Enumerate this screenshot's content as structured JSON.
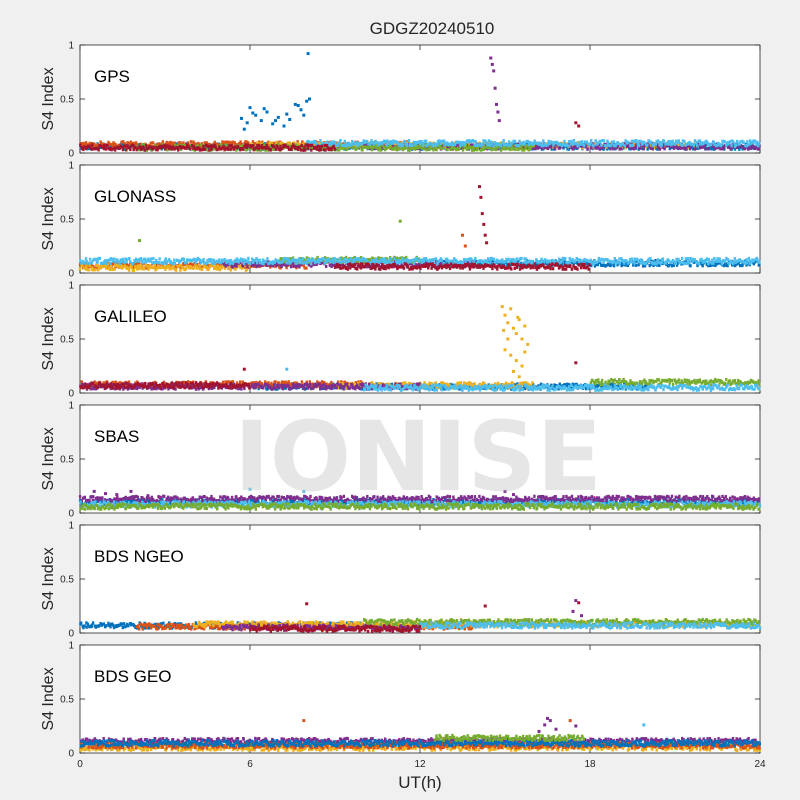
{
  "chart_data": {
    "type": "scatter",
    "title": "GDGZ20240510",
    "xlabel": "UT(h)",
    "ylabel": "S4 Index",
    "xlim": [
      0,
      24
    ],
    "ylim": [
      0,
      1
    ],
    "xticks": [
      "0",
      "6",
      "12",
      "18",
      "24"
    ],
    "yticks": [
      "0",
      "0.5",
      "1"
    ],
    "grid": false,
    "watermark": "IONISE",
    "colors": [
      "#0072BD",
      "#D95319",
      "#EDB120",
      "#7E2F8E",
      "#77AC30",
      "#4DBEEE",
      "#A2142F"
    ],
    "panels": [
      {
        "label": "GPS",
        "baseline": 0.07,
        "bands": [
          {
            "color": "#0072BD",
            "x": [
              0,
              24
            ],
            "y": 0.06
          },
          {
            "color": "#D95319",
            "x": [
              0,
              12
            ],
            "y": 0.08
          },
          {
            "color": "#EDB120",
            "x": [
              6,
              22
            ],
            "y": 0.07
          },
          {
            "color": "#7E2F8E",
            "x": [
              10,
              24
            ],
            "y": 0.06
          },
          {
            "color": "#77AC30",
            "x": [
              2,
              16
            ],
            "y": 0.05
          },
          {
            "color": "#4DBEEE",
            "x": [
              8,
              24
            ],
            "y": 0.09
          },
          {
            "color": "#A2142F",
            "x": [
              0,
              9
            ],
            "y": 0.05
          }
        ],
        "points": [
          {
            "color": "#0072BD",
            "x": [
              5.7,
              5.9,
              6.0,
              6.2,
              6.4,
              6.6,
              6.8,
              7.0,
              7.2,
              7.4,
              7.6,
              7.8,
              8.0,
              8.1,
              5.8,
              6.1,
              6.5,
              6.9,
              7.3,
              7.7,
              8.05,
              7.9
            ],
            "y": [
              0.32,
              0.28,
              0.42,
              0.35,
              0.3,
              0.38,
              0.27,
              0.33,
              0.25,
              0.31,
              0.45,
              0.4,
              0.48,
              0.5,
              0.22,
              0.37,
              0.41,
              0.3,
              0.36,
              0.44,
              0.92,
              0.35
            ]
          },
          {
            "color": "#7E2F8E",
            "x": [
              14.5,
              14.55,
              14.6,
              14.65,
              14.7,
              14.75,
              14.8
            ],
            "y": [
              0.88,
              0.82,
              0.76,
              0.6,
              0.45,
              0.38,
              0.3
            ]
          },
          {
            "color": "#A2142F",
            "x": [
              17.5,
              17.6
            ],
            "y": [
              0.28,
              0.25
            ]
          }
        ]
      },
      {
        "label": "GLONASS",
        "baseline": 0.08,
        "bands": [
          {
            "color": "#0072BD",
            "x": [
              12,
              24
            ],
            "y": 0.09
          },
          {
            "color": "#D95319",
            "x": [
              0,
              8
            ],
            "y": 0.07
          },
          {
            "color": "#EDB120",
            "x": [
              0,
              6
            ],
            "y": 0.05
          },
          {
            "color": "#7E2F8E",
            "x": [
              5,
              14
            ],
            "y": 0.08
          },
          {
            "color": "#77AC30",
            "x": [
              7,
              12
            ],
            "y": 0.12
          },
          {
            "color": "#4DBEEE",
            "x": [
              0,
              24
            ],
            "y": 0.11
          },
          {
            "color": "#A2142F",
            "x": [
              9,
              18
            ],
            "y": 0.06
          }
        ],
        "points": [
          {
            "color": "#A2142F",
            "x": [
              14.1,
              14.15,
              14.2,
              14.25,
              14.3,
              14.35
            ],
            "y": [
              0.8,
              0.7,
              0.55,
              0.45,
              0.35,
              0.28
            ]
          },
          {
            "color": "#77AC30",
            "x": [
              2.1,
              11.3
            ],
            "y": [
              0.3,
              0.48
            ]
          },
          {
            "color": "#D95319",
            "x": [
              13.5,
              13.6
            ],
            "y": [
              0.35,
              0.25
            ]
          }
        ]
      },
      {
        "label": "GALILEO",
        "baseline": 0.07,
        "bands": [
          {
            "color": "#0072BD",
            "x": [
              6,
              20
            ],
            "y": 0.06
          },
          {
            "color": "#D95319",
            "x": [
              0,
              10
            ],
            "y": 0.08
          },
          {
            "color": "#EDB120",
            "x": [
              9,
              16
            ],
            "y": 0.07
          },
          {
            "color": "#7E2F8E",
            "x": [
              0,
              12
            ],
            "y": 0.06
          },
          {
            "color": "#77AC30",
            "x": [
              18,
              24
            ],
            "y": 0.1
          },
          {
            "color": "#4DBEEE",
            "x": [
              10,
              24
            ],
            "y": 0.05
          },
          {
            "color": "#A2142F",
            "x": [
              0,
              6
            ],
            "y": 0.07
          }
        ],
        "points": [
          {
            "color": "#EDB120",
            "x": [
              14.9,
              15.0,
              15.1,
              15.2,
              15.3,
              15.4,
              15.5,
              15.6,
              15.7,
              15.8,
              15.0,
              15.2,
              15.4,
              15.6,
              15.1,
              15.3,
              15.5,
              15.7,
              14.95,
              15.45
            ],
            "y": [
              0.8,
              0.72,
              0.65,
              0.78,
              0.6,
              0.55,
              0.68,
              0.5,
              0.62,
              0.45,
              0.4,
              0.35,
              0.3,
              0.25,
              0.5,
              0.2,
              0.15,
              0.38,
              0.58,
              0.7
            ]
          },
          {
            "color": "#A2142F",
            "x": [
              5.8,
              17.5
            ],
            "y": [
              0.22,
              0.28
            ]
          },
          {
            "color": "#4DBEEE",
            "x": [
              7.3
            ],
            "y": [
              0.22
            ]
          }
        ]
      },
      {
        "label": "SBAS",
        "baseline": 0.1,
        "bands": [
          {
            "color": "#0072BD",
            "x": [
              0,
              24
            ],
            "y": 0.1
          },
          {
            "color": "#7E2F8E",
            "x": [
              0,
              24
            ],
            "y": 0.13
          },
          {
            "color": "#4DBEEE",
            "x": [
              0,
              24
            ],
            "y": 0.08
          },
          {
            "color": "#77AC30",
            "x": [
              0,
              24
            ],
            "y": 0.06
          }
        ],
        "points": [
          {
            "color": "#7E2F8E",
            "x": [
              0.5,
              0.9,
              1.3,
              1.8,
              2.4,
              15.0,
              15.3
            ],
            "y": [
              0.2,
              0.18,
              0.17,
              0.2,
              0.16,
              0.2,
              0.17
            ]
          },
          {
            "color": "#4DBEEE",
            "x": [
              6.0,
              7.9
            ],
            "y": [
              0.22,
              0.2
            ]
          }
        ]
      },
      {
        "label": "BDS NGEO",
        "baseline": 0.07,
        "bands": [
          {
            "color": "#0072BD",
            "x": [
              0,
              10
            ],
            "y": 0.07
          },
          {
            "color": "#D95319",
            "x": [
              2,
              14
            ],
            "y": 0.06
          },
          {
            "color": "#EDB120",
            "x": [
              4,
              24
            ],
            "y": 0.08
          },
          {
            "color": "#7E2F8E",
            "x": [
              5,
              12
            ],
            "y": 0.05
          },
          {
            "color": "#77AC30",
            "x": [
              10,
              24
            ],
            "y": 0.1
          },
          {
            "color": "#4DBEEE",
            "x": [
              12,
              24
            ],
            "y": 0.07
          },
          {
            "color": "#A2142F",
            "x": [
              6,
              12
            ],
            "y": 0.04
          }
        ],
        "points": [
          {
            "color": "#A2142F",
            "x": [
              8.0,
              14.3,
              17.6
            ],
            "y": [
              0.27,
              0.25,
              0.28
            ]
          },
          {
            "color": "#7E2F8E",
            "x": [
              17.4,
              17.5,
              17.7
            ],
            "y": [
              0.2,
              0.3,
              0.16
            ]
          }
        ]
      },
      {
        "label": "BDS GEO",
        "baseline": 0.1,
        "bands": [
          {
            "color": "#7E2F8E",
            "x": [
              0,
              24
            ],
            "y": 0.11
          },
          {
            "color": "#EDB120",
            "x": [
              0,
              24
            ],
            "y": 0.05
          },
          {
            "color": "#D95319",
            "x": [
              0,
              24
            ],
            "y": 0.07
          },
          {
            "color": "#0072BD",
            "x": [
              0,
              24
            ],
            "y": 0.09
          },
          {
            "color": "#77AC30",
            "x": [
              12.5,
              17.8
            ],
            "y": 0.14
          }
        ],
        "points": [
          {
            "color": "#D95319",
            "x": [
              7.9,
              17.3
            ],
            "y": [
              0.3,
              0.3
            ]
          },
          {
            "color": "#7E2F8E",
            "x": [
              16.2,
              16.4,
              16.5,
              16.6,
              16.8,
              17.5
            ],
            "y": [
              0.2,
              0.26,
              0.32,
              0.3,
              0.22,
              0.25
            ]
          },
          {
            "color": "#4DBEEE",
            "x": [
              19.9
            ],
            "y": [
              0.26
            ]
          }
        ]
      }
    ]
  }
}
